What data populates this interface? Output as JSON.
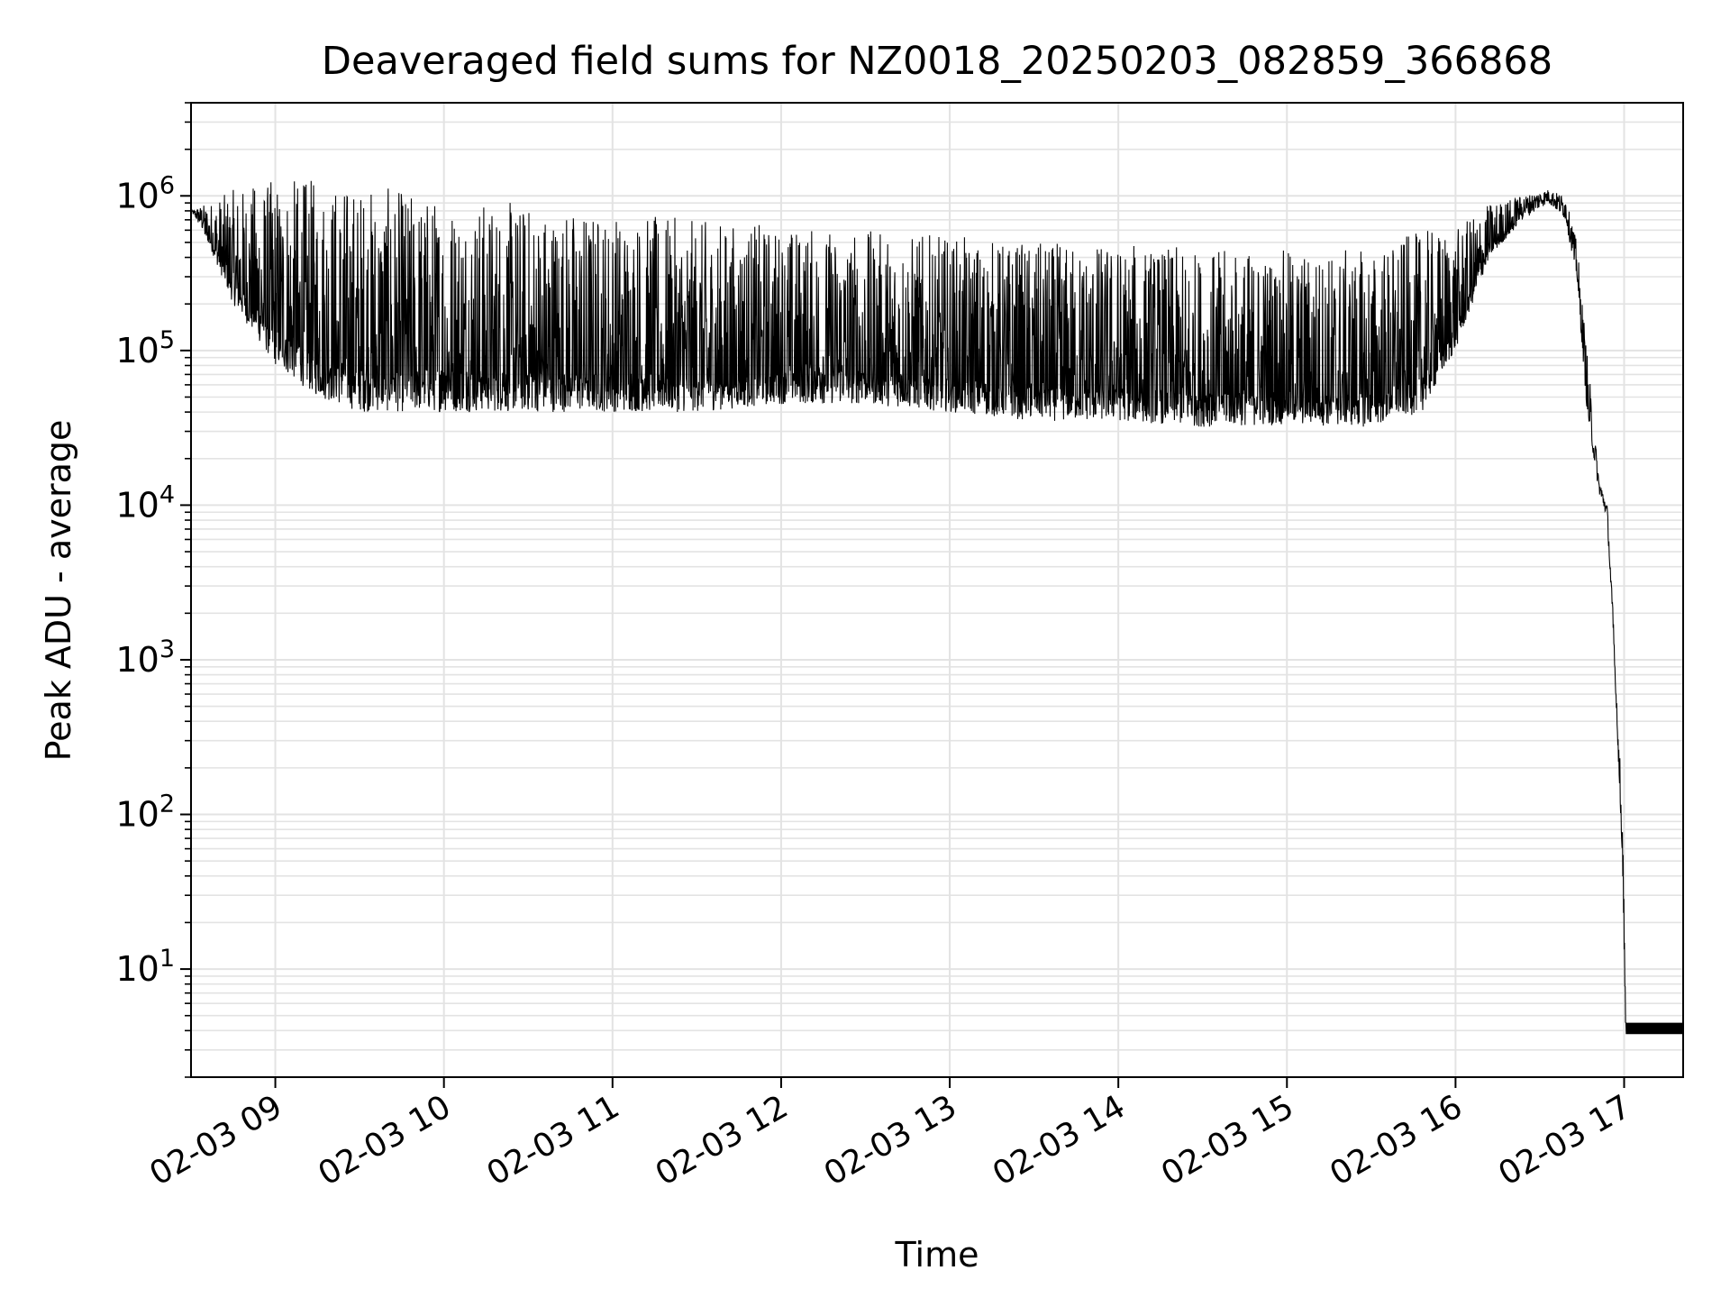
{
  "chart_data": {
    "type": "line",
    "title": "Deaveraged field sums for NZ0018_20250203_082859_366868",
    "xlabel": "Time",
    "ylabel": "Peak ADU - average",
    "yscale": "log",
    "grid": true,
    "x_tick_labels": [
      "02-03 09",
      "02-03 10",
      "02-03 11",
      "02-03 12",
      "02-03 13",
      "02-03 14",
      "02-03 15",
      "02-03 16",
      "02-03 17"
    ],
    "x_tick_hours": [
      9,
      10,
      11,
      12,
      13,
      14,
      15,
      16,
      17
    ],
    "xlim_hours": [
      8.5,
      17.35
    ],
    "y_tick_exponents": [
      1,
      2,
      3,
      4,
      5,
      6
    ],
    "ylim": [
      2,
      4000000
    ],
    "line_color": "#000000",
    "grid_color": "#e3e3e3",
    "envelope": {
      "x_hours": [
        8.5,
        8.6,
        8.75,
        9.0,
        9.25,
        9.5,
        10.0,
        10.5,
        11.0,
        11.5,
        12.0,
        12.5,
        13.0,
        13.5,
        14.0,
        14.5,
        15.0,
        15.5,
        15.8,
        16.0,
        16.2,
        16.4,
        16.55,
        16.65,
        16.72,
        16.78,
        16.85,
        16.9,
        16.95,
        16.99,
        17.01,
        17.35
      ],
      "upper": [
        800000,
        900000,
        1100000,
        1300000,
        1300000,
        1200000,
        1000000,
        900000,
        800000,
        700000,
        650000,
        600000,
        550000,
        500000,
        500000,
        450000,
        450000,
        450000,
        600000,
        600000,
        900000,
        1000000,
        1100000,
        1000000,
        500000,
        100000,
        15000,
        10000,
        1000,
        100,
        4.5,
        4.5
      ],
      "lower": [
        800000,
        500000,
        200000,
        80000,
        50000,
        40000,
        40000,
        40000,
        40000,
        40000,
        45000,
        45000,
        40000,
        35000,
        35000,
        32000,
        33000,
        32000,
        40000,
        100000,
        400000,
        700000,
        900000,
        700000,
        300000,
        40000,
        12000,
        8000,
        600,
        50,
        3.8,
        3.8
      ]
    }
  }
}
